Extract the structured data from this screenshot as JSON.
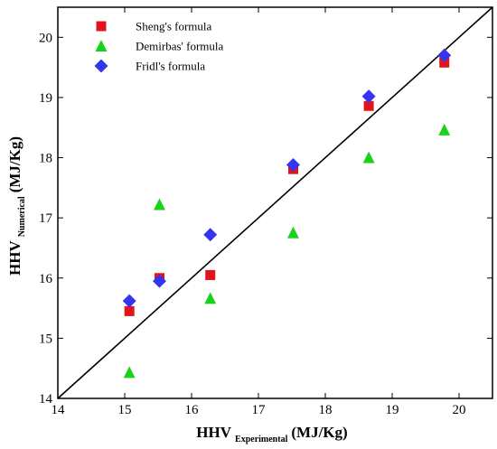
{
  "chart_data": {
    "type": "scatter",
    "xlim": [
      14,
      20.5
    ],
    "ylim": [
      14,
      20.5
    ],
    "xticks": [
      14,
      15,
      16,
      17,
      18,
      19,
      20
    ],
    "yticks": [
      14,
      15,
      16,
      17,
      18,
      19,
      20
    ],
    "xlabel": {
      "main": "HHV",
      "sub": "Experimental",
      "unit": "(MJ/Kg)"
    },
    "ylabel": {
      "main": "HHV",
      "sub": "Numerical",
      "unit": "(MJ/Kg)"
    },
    "grid": false,
    "legend_position": "top-left",
    "reference_line": {
      "from": [
        14,
        14
      ],
      "to": [
        20.5,
        20.5
      ]
    },
    "series": [
      {
        "name": "Sheng's formula",
        "marker": "square",
        "color": "#e0141a",
        "x": [
          15.07,
          15.52,
          16.28,
          17.52,
          18.65,
          19.78
        ],
        "y": [
          15.45,
          16.0,
          16.05,
          17.81,
          18.86,
          19.58
        ]
      },
      {
        "name": "Demirbas' formula",
        "marker": "triangle",
        "color": "#19d219",
        "x": [
          15.07,
          15.52,
          16.28,
          17.52,
          18.65,
          19.78
        ],
        "y": [
          14.43,
          17.22,
          15.66,
          16.75,
          18.0,
          18.46
        ]
      },
      {
        "name": "Fridl's formula",
        "marker": "diamond",
        "color": "#3535f0",
        "x": [
          15.07,
          15.52,
          16.28,
          17.52,
          18.65,
          19.78
        ],
        "y": [
          15.62,
          15.95,
          16.72,
          17.88,
          19.02,
          19.7
        ]
      }
    ]
  }
}
